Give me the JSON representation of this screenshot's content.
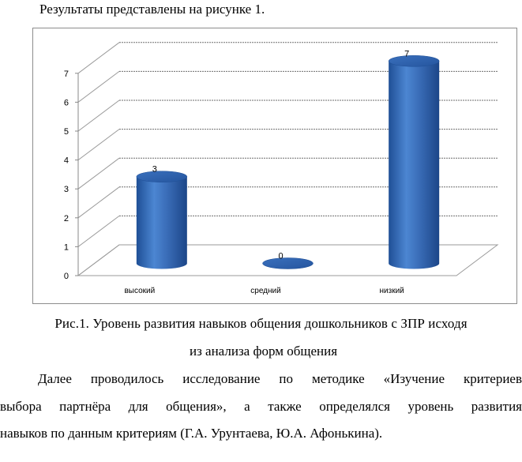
{
  "intro_text": "Результаты представлены на рисунке 1.",
  "chart_data": {
    "type": "bar",
    "style": "3d-cylinder",
    "categories": [
      "высокий",
      "средний",
      "низкий"
    ],
    "values": [
      3,
      0,
      7
    ],
    "data_labels": [
      "3",
      "0",
      "7"
    ],
    "yticks": [
      "0",
      "1",
      "2",
      "3",
      "4",
      "5",
      "6",
      "7"
    ],
    "ylim": [
      0,
      7
    ],
    "grid": true,
    "legend": "none",
    "bar_color": "#3a6db8",
    "bar_top_color": "#2d5ca8"
  },
  "caption_line1": "Рис.1. Уровень развития навыков общения дошкольников с ЗПР исходя",
  "caption_line2": "из анализа форм общения",
  "paragraph_lines": [
    "Далее проводилось исследование по методике «Изучение критериев",
    "выбора партнёра для общения», а также определялся уровень развития",
    "навыков по данным критериям (Г.А. Урунтаева, Ю.А. Афонькина)."
  ]
}
